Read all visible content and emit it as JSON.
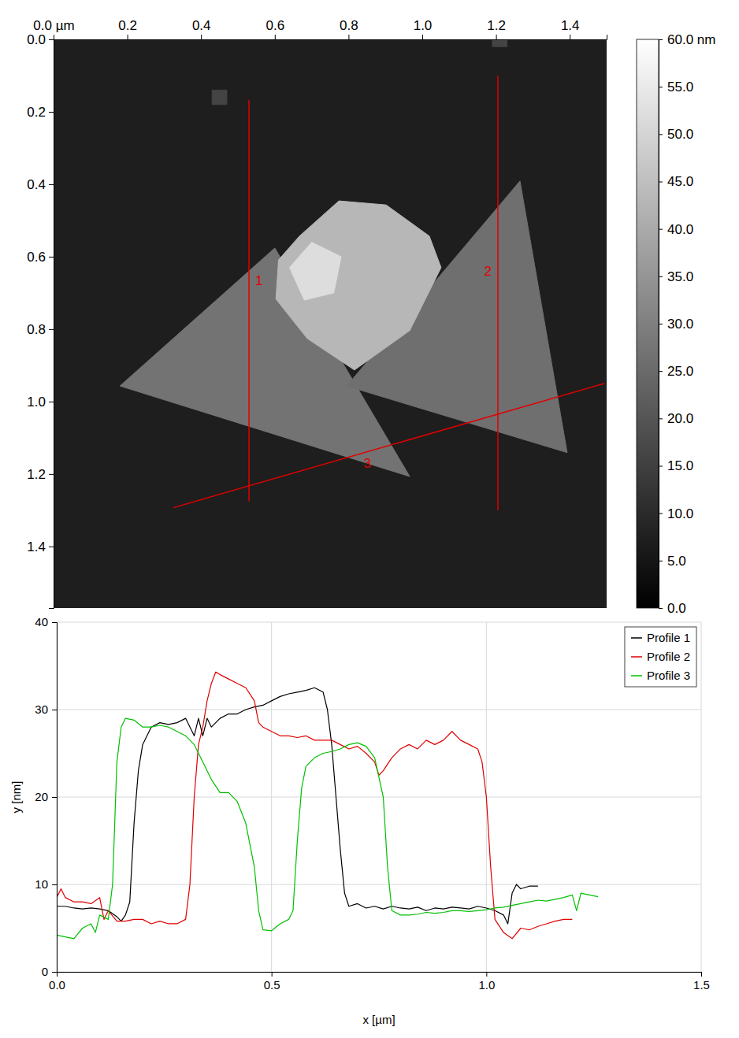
{
  "chart_data": [
    {
      "type": "image",
      "xlim": [
        0,
        1.5
      ],
      "xticks": [
        {
          "value": 0,
          "label": "0.0 µm"
        },
        0.2,
        0.4,
        0.6,
        0.8,
        {
          "value": 1,
          "label": "1.0"
        },
        1.2,
        1.4
      ],
      "ylim": [
        0,
        1.57
      ],
      "yticks": [
        {
          "value": 0,
          "label": "0.0"
        },
        0.2,
        0.4,
        0.6,
        0.8,
        {
          "value": 1,
          "label": "1.0"
        },
        1.2,
        1.4
      ],
      "substrate_height": 7,
      "features": [
        {
          "points": [
            [
              0.18,
              0.957
            ],
            [
              0.6,
              0.576
            ],
            [
              0.966,
              1.207
            ]
          ],
          "height": 27
        },
        {
          "points": [
            [
              0.795,
              0.957
            ],
            [
              1.265,
              0.391
            ],
            [
              1.393,
              1.141
            ]
          ],
          "height": 26
        },
        {
          "points": [
            [
              0.61,
              0.609
            ],
            [
              0.667,
              0.543
            ],
            [
              0.774,
              0.446
            ],
            [
              0.902,
              0.457
            ],
            [
              1.019,
              0.543
            ],
            [
              1.051,
              0.63
            ],
            [
              0.966,
              0.804
            ],
            [
              0.816,
              0.913
            ],
            [
              0.688,
              0.826
            ],
            [
              0.603,
              0.717
            ]
          ],
          "height": 43
        },
        {
          "points": [
            [
              0.64,
              0.63
            ],
            [
              0.7,
              0.56
            ],
            [
              0.78,
              0.6
            ],
            [
              0.76,
              0.7
            ],
            [
              0.68,
              0.72
            ]
          ],
          "height": 52
        },
        {
          "points": [
            [
              0.43,
              0.14
            ],
            [
              0.47,
              0.14
            ],
            [
              0.47,
              0.18
            ],
            [
              0.43,
              0.18
            ]
          ],
          "height": 16
        },
        {
          "points": [
            [
              1.19,
              0.0
            ],
            [
              1.23,
              0.0
            ],
            [
              1.23,
              0.02
            ],
            [
              1.19,
              0.02
            ]
          ],
          "height": 16
        }
      ],
      "profiles": [
        {
          "label": "1",
          "color": "#e00000",
          "start": [
            0.53,
            0.167
          ],
          "end": [
            0.53,
            1.276
          ]
        },
        {
          "label": "2",
          "color": "#e00000",
          "start": [
            1.205,
            0.1
          ],
          "end": [
            1.205,
            1.3
          ]
        },
        {
          "label": "3",
          "color": "#e00000",
          "start": [
            0.325,
            1.293
          ],
          "end": [
            1.494,
            0.95
          ]
        }
      ],
      "colorbar": {
        "range": [
          0,
          60
        ],
        "ticks": [
          {
            "value": 0,
            "label": "0.0"
          },
          {
            "value": 5,
            "label": "5.0"
          },
          {
            "value": 10,
            "label": "10.0"
          },
          {
            "value": 15,
            "label": "15.0"
          },
          {
            "value": 20,
            "label": "20.0"
          },
          {
            "value": 25,
            "label": "25.0"
          },
          {
            "value": 30,
            "label": "30.0"
          },
          {
            "value": 35,
            "label": "35.0"
          },
          {
            "value": 40,
            "label": "40.0"
          },
          {
            "value": 45,
            "label": "45.0"
          },
          {
            "value": 50,
            "label": "50.0"
          },
          {
            "value": 55,
            "label": "55.0"
          },
          {
            "value": 60,
            "label": "60.0 nm"
          }
        ]
      }
    },
    {
      "type": "line",
      "x_label": "x [µm]",
      "y_label": "y [nm]",
      "xlim": [
        0,
        1.5
      ],
      "xticks": [
        {
          "value": 0,
          "label": "0.0"
        },
        0.5,
        {
          "value": 1,
          "label": "1.0"
        },
        1.5
      ],
      "ylim": [
        0,
        40
      ],
      "yticks": [
        0,
        10,
        20,
        30,
        40
      ],
      "grid": true,
      "legend": "top-right",
      "series": [
        {
          "name": "Profile 1",
          "color": "#000000",
          "x": [
            0,
            0.02,
            0.04,
            0.06,
            0.08,
            0.1,
            0.12,
            0.14,
            0.15,
            0.16,
            0.17,
            0.18,
            0.19,
            0.2,
            0.22,
            0.24,
            0.26,
            0.28,
            0.3,
            0.32,
            0.33,
            0.34,
            0.35,
            0.36,
            0.38,
            0.4,
            0.42,
            0.44,
            0.46,
            0.48,
            0.5,
            0.52,
            0.54,
            0.56,
            0.58,
            0.6,
            0.62,
            0.63,
            0.64,
            0.65,
            0.66,
            0.67,
            0.68,
            0.7,
            0.72,
            0.74,
            0.76,
            0.78,
            0.8,
            0.82,
            0.84,
            0.86,
            0.88,
            0.9,
            0.92,
            0.94,
            0.96,
            0.98,
            1,
            1.02,
            1.04,
            1.05,
            1.06,
            1.07,
            1.08,
            1.1,
            1.12
          ],
          "values": [
            7.5,
            7.5,
            7.3,
            7.2,
            7.3,
            7.2,
            7,
            6.3,
            5.8,
            6.5,
            8,
            17,
            23,
            26,
            28,
            28.5,
            28.3,
            28.5,
            29,
            27,
            29,
            27,
            29,
            28,
            29,
            29.5,
            29.5,
            30,
            30.3,
            30.5,
            31,
            31.5,
            31.8,
            32,
            32.2,
            32.5,
            32,
            30,
            26,
            20,
            14,
            9,
            7.5,
            7.8,
            7.3,
            7.5,
            7.2,
            7.5,
            7.3,
            7.2,
            7.4,
            7,
            7.3,
            7.2,
            7.4,
            7.3,
            7.2,
            7.5,
            7.3,
            7,
            6.5,
            5.5,
            9,
            10,
            9.5,
            9.8,
            9.8
          ]
        },
        {
          "name": "Profile 2",
          "color": "#e00000",
          "x": [
            0,
            0.01,
            0.02,
            0.04,
            0.06,
            0.08,
            0.1,
            0.11,
            0.12,
            0.14,
            0.16,
            0.18,
            0.2,
            0.22,
            0.24,
            0.26,
            0.28,
            0.3,
            0.31,
            0.32,
            0.33,
            0.34,
            0.35,
            0.36,
            0.37,
            0.38,
            0.4,
            0.42,
            0.44,
            0.46,
            0.47,
            0.48,
            0.5,
            0.52,
            0.54,
            0.56,
            0.58,
            0.6,
            0.62,
            0.64,
            0.66,
            0.68,
            0.7,
            0.72,
            0.74,
            0.75,
            0.76,
            0.78,
            0.8,
            0.82,
            0.84,
            0.86,
            0.88,
            0.9,
            0.92,
            0.94,
            0.96,
            0.98,
            0.99,
            1,
            1.01,
            1.02,
            1.04,
            1.06,
            1.08,
            1.1,
            1.12,
            1.14,
            1.16,
            1.18,
            1.2
          ],
          "values": [
            8.5,
            9.5,
            8.5,
            8,
            8,
            7.8,
            8.5,
            6,
            7,
            5.8,
            5.8,
            6,
            6,
            5.5,
            5.8,
            5.5,
            5.5,
            6,
            10,
            20,
            26,
            28,
            31,
            33,
            34.3,
            34,
            33.5,
            33,
            32.5,
            31,
            28.5,
            28,
            27.5,
            27,
            27,
            26.8,
            27,
            26.5,
            26.5,
            26.5,
            26,
            25.5,
            25.8,
            25,
            24,
            22.5,
            23,
            24.5,
            25.5,
            26,
            25.5,
            26.5,
            26,
            26.5,
            27.5,
            26.5,
            26,
            25.5,
            24,
            20,
            12,
            6,
            4.5,
            3.8,
            5,
            4.8,
            5.2,
            5.5,
            5.8,
            6,
            6
          ]
        },
        {
          "name": "Profile 3",
          "color": "#00c000",
          "x": [
            0,
            0.02,
            0.04,
            0.06,
            0.08,
            0.09,
            0.1,
            0.12,
            0.13,
            0.14,
            0.15,
            0.16,
            0.18,
            0.2,
            0.22,
            0.24,
            0.26,
            0.28,
            0.3,
            0.32,
            0.34,
            0.36,
            0.38,
            0.4,
            0.42,
            0.44,
            0.46,
            0.47,
            0.48,
            0.5,
            0.52,
            0.54,
            0.55,
            0.56,
            0.57,
            0.58,
            0.6,
            0.62,
            0.64,
            0.66,
            0.68,
            0.7,
            0.72,
            0.74,
            0.76,
            0.77,
            0.78,
            0.8,
            0.82,
            0.84,
            0.86,
            0.88,
            0.9,
            0.92,
            0.94,
            0.96,
            0.98,
            1,
            1.02,
            1.04,
            1.06,
            1.08,
            1.1,
            1.12,
            1.14,
            1.16,
            1.18,
            1.2,
            1.21,
            1.22,
            1.24,
            1.26
          ],
          "values": [
            4.2,
            4,
            3.8,
            5,
            5.5,
            4.5,
            6.5,
            6,
            10,
            24,
            28,
            29,
            28.8,
            28,
            28,
            28.2,
            28,
            27.5,
            27,
            26,
            24,
            22,
            20.5,
            20.5,
            19.5,
            17,
            12,
            7,
            4.8,
            4.7,
            5.5,
            6,
            7,
            15,
            21,
            23.5,
            24.5,
            25,
            25.2,
            25.5,
            26,
            26.2,
            25.8,
            24.5,
            20,
            12,
            7,
            6.5,
            6.5,
            6.6,
            6.8,
            6.7,
            6.8,
            7,
            7,
            6.9,
            7,
            7.1,
            7.3,
            7.4,
            7.6,
            7.8,
            8,
            8.2,
            8.1,
            8.3,
            8.5,
            8.8,
            7,
            9,
            8.8,
            8.6
          ]
        }
      ]
    }
  ]
}
